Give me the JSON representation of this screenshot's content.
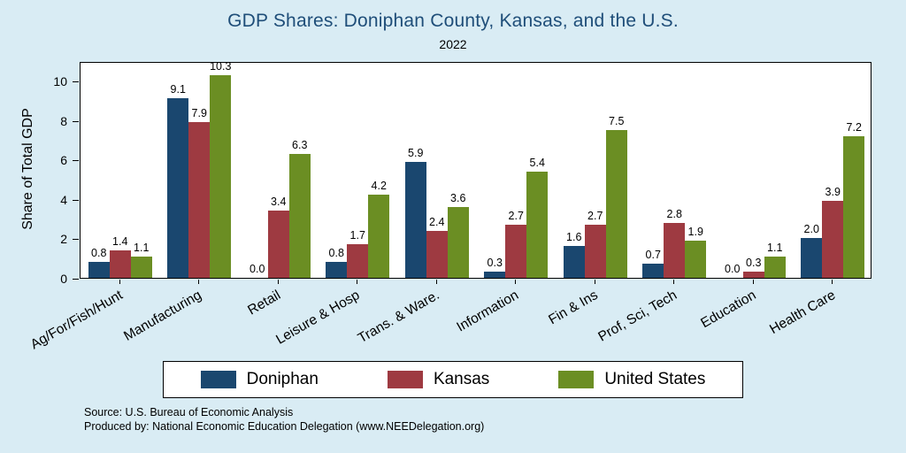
{
  "header": {
    "title": "GDP Shares: Doniphan County, Kansas, and the U.S.",
    "subtitle": "2022",
    "title_color": "#1f4e79"
  },
  "chart_data": {
    "type": "bar",
    "title": "GDP Shares: Doniphan County, Kansas, and the U.S.",
    "subtitle": "2022",
    "ylabel": "Share of Total GDP",
    "xlabel": "",
    "ylim": [
      0,
      11
    ],
    "yticks": [
      0,
      2,
      4,
      6,
      8,
      10
    ],
    "grid": false,
    "legend_position": "bottom",
    "background_color": "#d9ecf4",
    "plot_background_color": "#ffffff",
    "categories": [
      "Ag/For/Fish/Hunt",
      "Manufacturing",
      "Retail",
      "Leisure & Hosp",
      "Trans. & Ware.",
      "Information",
      "Fin & Ins",
      "Prof, Sci, Tech",
      "Education",
      "Health Care"
    ],
    "series": [
      {
        "name": "Doniphan",
        "color": "#1a476f",
        "values": [
          0.8,
          9.1,
          0.0,
          0.8,
          5.9,
          0.3,
          1.6,
          0.7,
          0.0,
          2.0
        ]
      },
      {
        "name": "Kansas",
        "color": "#9e3a41",
        "values": [
          1.4,
          7.9,
          3.4,
          1.7,
          2.4,
          2.7,
          2.7,
          2.8,
          0.3,
          3.9
        ]
      },
      {
        "name": "United States",
        "color": "#6b8e23",
        "values": [
          1.1,
          10.3,
          6.3,
          4.2,
          3.6,
          5.4,
          7.5,
          1.9,
          1.1,
          7.2
        ]
      }
    ]
  },
  "footer": {
    "source": "Source: U.S. Bureau of Economic Analysis",
    "produced": "Produced by: National Economic Education Delegation (www.NEEDelegation.org)"
  }
}
